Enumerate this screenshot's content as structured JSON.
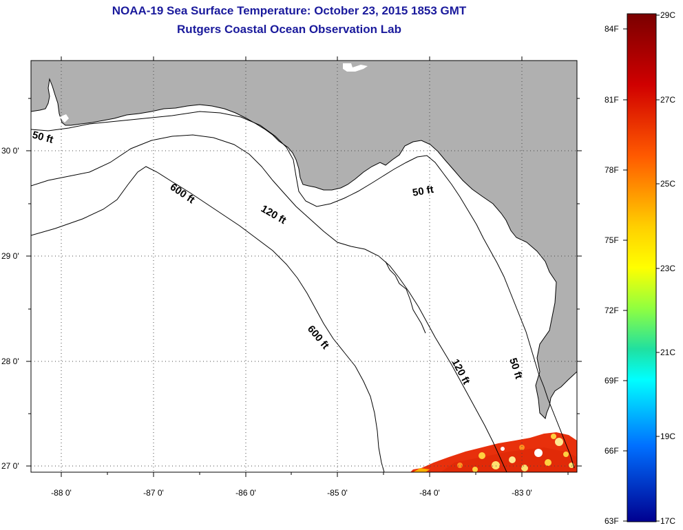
{
  "header": {
    "title_line1": "NOAA-19 Sea Surface Temperature:  October 23, 2015 1853 GMT",
    "title_line2": "Rutgers Coastal Ocean Observation Lab"
  },
  "map": {
    "longitude_labels": [
      "-88 0'",
      "-87 0'",
      "-86 0'",
      "-85 0'",
      "-84 0'",
      "-83 0'"
    ],
    "latitude_labels": [
      "30 0'",
      "29 0'",
      "28 0'",
      "27 0'"
    ],
    "contour_labels": {
      "c50_west": "50 ft",
      "c600_north": "600 ft",
      "c120_north": "120 ft",
      "c50_east": "50 ft",
      "c600_south": "600 ft",
      "c120_south": "120 ft",
      "c50_south": "50 ft"
    },
    "colors": {
      "land": "#b0b0b0",
      "ocean": "#ffffff",
      "sst_hot": "#e8300c"
    }
  },
  "colorbar": {
    "fahrenheit_labels": [
      "84F",
      "81F",
      "78F",
      "75F",
      "72F",
      "69F",
      "66F",
      "63F"
    ],
    "celsius_labels": [
      "29C",
      "27C",
      "25C",
      "23C",
      "21C",
      "19C",
      "17C"
    ],
    "gradient_colors": [
      "#7a0000",
      "#e00000",
      "#ff7000",
      "#ffff00",
      "#60ff90",
      "#00e0ff",
      "#0060ff",
      "#000080"
    ]
  }
}
